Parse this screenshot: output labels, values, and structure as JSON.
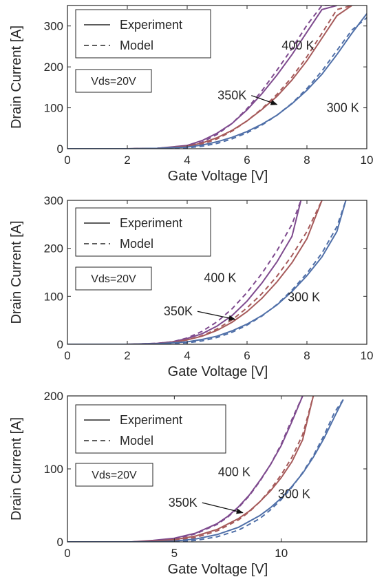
{
  "chart_data": [
    {
      "type": "line",
      "xlabel": "Gate Voltage [V]",
      "ylabel": "Drain Current [A]",
      "xlim": [
        0,
        10
      ],
      "ylim": [
        0,
        350
      ],
      "xticks": [
        "0",
        "2",
        "4",
        "6",
        "8",
        "10"
      ],
      "yticks": [
        "0",
        "100",
        "200",
        "300"
      ],
      "legend": {
        "placement": "top-left",
        "entries": [
          {
            "label": "Experiment",
            "style": "solid"
          },
          {
            "label": "Model",
            "style": "dashed"
          }
        ]
      },
      "vds_label": "Vds=20V",
      "annotations": [
        {
          "text": "400 K",
          "x": 7.7,
          "y": 242
        },
        {
          "text": "350K",
          "x": 5.5,
          "y": 120,
          "arrow_to": [
            7.0,
            108
          ]
        },
        {
          "text": "300 K",
          "x": 9.2,
          "y": 90
        }
      ],
      "series": [
        {
          "temperature": "400 K",
          "color": "#7E4A8E",
          "x": [
            0,
            2,
            3,
            4,
            4.5,
            5,
            5.5,
            6,
            6.5,
            7,
            7.5,
            8,
            8.5,
            9
          ],
          "experiment": [
            0,
            0,
            1,
            8,
            20,
            38,
            62,
            95,
            135,
            180,
            230,
            285,
            340,
            350
          ],
          "model": [
            0,
            0,
            1,
            6,
            16,
            35,
            62,
            98,
            142,
            192,
            245,
            302,
            350,
            350
          ]
        },
        {
          "temperature": "350K",
          "color": "#A65A5A",
          "x": [
            0,
            2,
            3,
            4,
            4.5,
            5,
            5.5,
            6,
            6.5,
            7,
            7.5,
            8,
            8.5,
            9,
            9.5
          ],
          "experiment": [
            0,
            0,
            1,
            6,
            14,
            27,
            45,
            68,
            96,
            128,
            168,
            215,
            270,
            325,
            350
          ],
          "model": [
            0,
            0,
            1,
            4,
            11,
            24,
            43,
            68,
            98,
            133,
            175,
            225,
            282,
            340,
            350
          ]
        },
        {
          "temperature": "300 K",
          "color": "#4F6FA8",
          "x": [
            0,
            2,
            3,
            4,
            4.5,
            5,
            5.5,
            6,
            6.5,
            7,
            7.5,
            8,
            8.5,
            9,
            9.5,
            10
          ],
          "experiment": [
            0,
            0,
            1,
            4,
            9,
            17,
            28,
            42,
            60,
            82,
            110,
            143,
            182,
            230,
            282,
            330
          ],
          "model": [
            0,
            0,
            0,
            2,
            6,
            13,
            24,
            39,
            58,
            82,
            111,
            147,
            190,
            240,
            290,
            320
          ]
        }
      ]
    },
    {
      "type": "line",
      "xlabel": "Gate Voltage [V]",
      "ylabel": "Drain Current [A]",
      "xlim": [
        0,
        10
      ],
      "ylim": [
        0,
        300
      ],
      "xticks": [
        "0",
        "2",
        "4",
        "6",
        "8",
        "10"
      ],
      "yticks": [
        "0",
        "100",
        "200",
        "300"
      ],
      "legend": {
        "placement": "top-left",
        "entries": [
          {
            "label": "Experiment",
            "style": "solid"
          },
          {
            "label": "Model",
            "style": "dashed"
          }
        ]
      },
      "vds_label": "Vds=20V",
      "annotations": [
        {
          "text": "400 K",
          "x": 5.1,
          "y": 130
        },
        {
          "text": "350K",
          "x": 3.7,
          "y": 60,
          "arrow_to": [
            5.6,
            52
          ]
        },
        {
          "text": "300 K",
          "x": 7.9,
          "y": 90
        }
      ],
      "series": [
        {
          "temperature": "400 K",
          "color": "#7E4A8E",
          "x": [
            0,
            2,
            3,
            3.5,
            4,
            4.5,
            5,
            5.5,
            6,
            6.5,
            7,
            7.5,
            7.8
          ],
          "experiment": [
            0,
            0,
            2,
            5,
            12,
            22,
            38,
            60,
            90,
            128,
            172,
            225,
            300
          ],
          "model": [
            0,
            0,
            2,
            5,
            13,
            27,
            47,
            74,
            108,
            148,
            195,
            250,
            300
          ]
        },
        {
          "temperature": "350K",
          "color": "#A65A5A",
          "x": [
            0,
            2,
            3,
            3.5,
            4,
            4.5,
            5,
            5.5,
            6,
            6.5,
            7,
            7.5,
            8,
            8.5
          ],
          "experiment": [
            0,
            0,
            1,
            4,
            9,
            17,
            29,
            46,
            68,
            96,
            130,
            170,
            220,
            300
          ],
          "model": [
            0,
            0,
            1,
            3,
            9,
            18,
            32,
            51,
            76,
            106,
            142,
            185,
            235,
            300
          ]
        },
        {
          "temperature": "300 K",
          "color": "#4F6FA8",
          "x": [
            0,
            2,
            3,
            4,
            4.5,
            5,
            5.5,
            6,
            6.5,
            7,
            7.5,
            8,
            8.5,
            9,
            9.3
          ],
          "experiment": [
            0,
            0,
            1,
            5,
            10,
            17,
            28,
            42,
            60,
            82,
            110,
            143,
            182,
            235,
            300
          ],
          "model": [
            0,
            0,
            0,
            3,
            7,
            14,
            25,
            40,
            59,
            83,
            113,
            148,
            190,
            245,
            300
          ]
        }
      ]
    },
    {
      "type": "line",
      "xlabel": "Gate Voltage [V]",
      "ylabel": "Drain Current [A]",
      "xlim": [
        0,
        14
      ],
      "ylim": [
        0,
        200
      ],
      "xticks": [
        "0",
        "5",
        "10"
      ],
      "yticks": [
        "0",
        "100",
        "200"
      ],
      "legend": {
        "placement": "top-left",
        "entries": [
          {
            "label": "Experiment",
            "style": "solid"
          },
          {
            "label": "Model",
            "style": "dashed"
          }
        ]
      },
      "vds_label": "Vds=20V",
      "annotations": [
        {
          "text": "400 K",
          "x": 7.8,
          "y": 90
        },
        {
          "text": "350K",
          "x": 5.4,
          "y": 48,
          "arrow_to": [
            8.2,
            40
          ]
        },
        {
          "text": "300 K",
          "x": 10.6,
          "y": 60
        }
      ],
      "series": [
        {
          "temperature": "400 K",
          "color": "#7E4A8E",
          "x": [
            0,
            3,
            4,
            5,
            6,
            7,
            7.5,
            8,
            8.5,
            9,
            9.5,
            10,
            10.5,
            11
          ],
          "experiment": [
            0,
            0,
            2,
            5,
            12,
            25,
            35,
            48,
            64,
            84,
            106,
            132,
            165,
            200
          ],
          "model": [
            0,
            0,
            1,
            4,
            11,
            24,
            34,
            47,
            63,
            83,
            106,
            134,
            168,
            200
          ]
        },
        {
          "temperature": "350K",
          "color": "#A65A5A",
          "x": [
            0,
            3,
            4,
            5,
            6,
            7,
            8,
            8.5,
            9,
            9.5,
            10,
            10.5,
            11,
            11.5
          ],
          "experiment": [
            0,
            0,
            1,
            3,
            8,
            17,
            32,
            42,
            55,
            70,
            88,
            110,
            140,
            200
          ],
          "model": [
            0,
            0,
            0,
            2,
            6,
            15,
            30,
            41,
            55,
            72,
            92,
            116,
            147,
            200
          ]
        },
        {
          "temperature": "300 K",
          "color": "#4F6FA8",
          "x": [
            0,
            4,
            5,
            6,
            7,
            8,
            9,
            9.5,
            10,
            10.5,
            11,
            11.5,
            12,
            12.5,
            12.9
          ],
          "experiment": [
            0,
            0,
            1,
            4,
            10,
            20,
            36,
            47,
            60,
            76,
            94,
            116,
            142,
            172,
            195
          ],
          "model": [
            0,
            0,
            0,
            2,
            7,
            16,
            32,
            44,
            58,
            75,
            95,
            118,
            146,
            178,
            195
          ]
        }
      ]
    }
  ]
}
